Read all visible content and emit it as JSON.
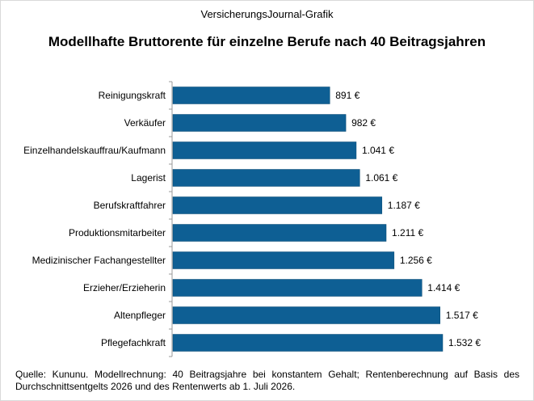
{
  "header": "VersicherungsJournal-Grafik",
  "title": "Modellhafte Bruttorente für einzelne Berufe nach 40 Beitragsjahren",
  "footnote": "Quelle: Kununu. Modellrechnung: 40 Beitragsjahre bei konstantem Gehalt; Rentenberechnung auf Basis des Durchschnittsentgelts 2026 und des Rentenwerts ab 1. Juli 2026.",
  "colors": {
    "bar": "#0e5f94",
    "bar_edge": "#0a4a73",
    "axis": "#9a9a9a"
  },
  "chart_data": {
    "type": "bar",
    "orientation": "horizontal",
    "title": "Modellhafte Bruttorente für einzelne Berufe nach 40 Beitragsjahren",
    "xlabel": "",
    "ylabel": "",
    "xlim": [
      0,
      1532
    ],
    "grid": false,
    "legend": "none",
    "categories": [
      "Reinigungskraft",
      "Verkäufer",
      "Einzelhandelskauffrau/Kaufmann",
      "Lagerist",
      "Berufskraftfahrer",
      "Produktionsmitarbeiter",
      "Medizinischer Fachangestellter",
      "Erzieher/Erzieherin",
      "Altenpfleger",
      "Pflegefachkraft"
    ],
    "values": [
      891,
      982,
      1041,
      1061,
      1187,
      1211,
      1256,
      1414,
      1517,
      1532
    ],
    "value_labels": [
      "891 €",
      "982 €",
      "1.041 €",
      "1.061 €",
      "1.187 €",
      "1.211 €",
      "1.256 €",
      "1.414 €",
      "1.517 €",
      "1.532 €"
    ]
  }
}
